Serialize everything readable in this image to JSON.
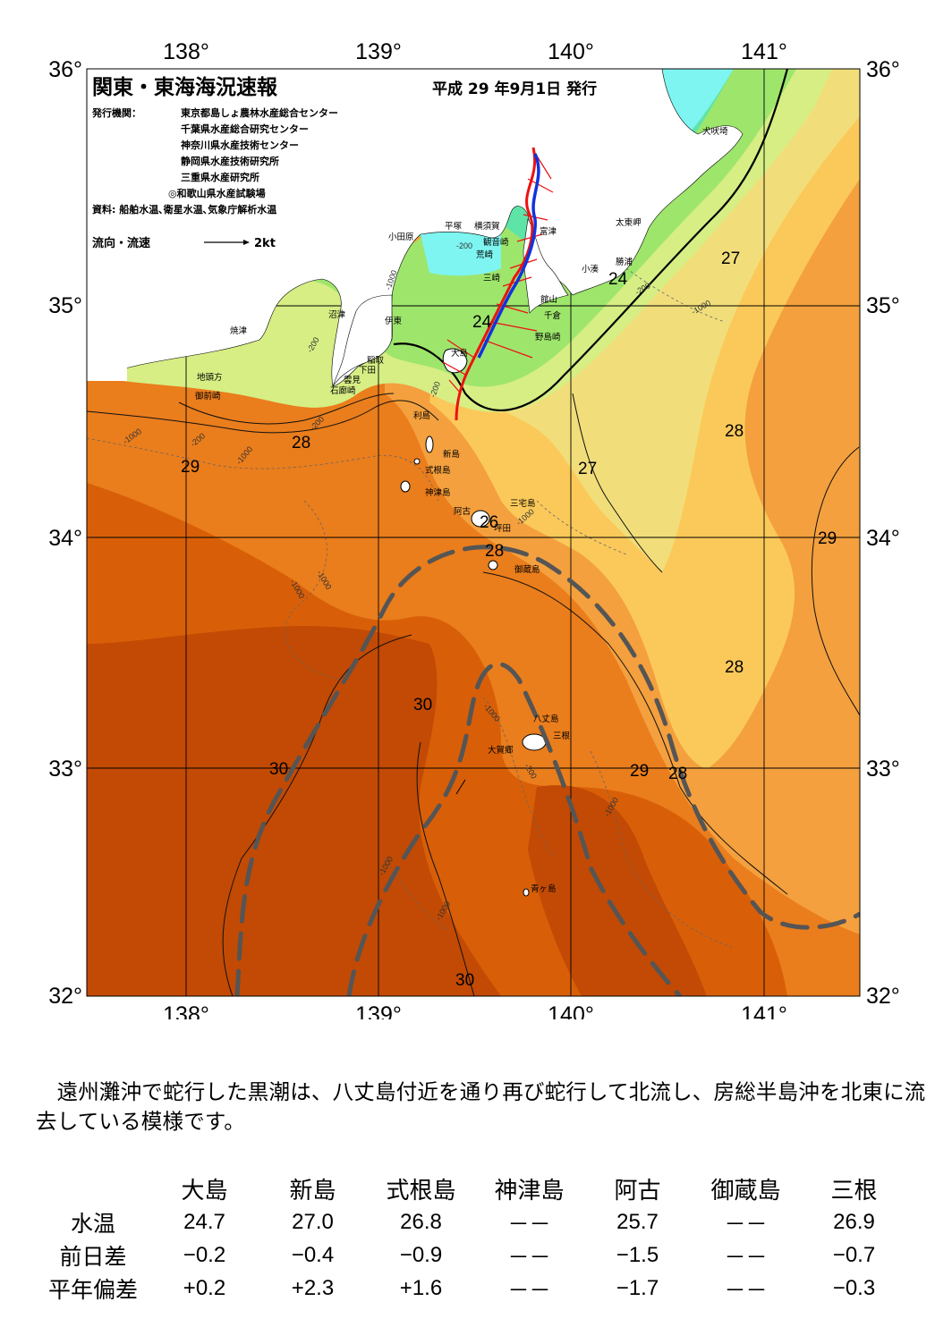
{
  "map": {
    "title": "関東・東海海況速報",
    "issue_date": "平成 29 年9月1日 発行",
    "issuer_label": "発行機関：",
    "issuers": [
      "東京都島しょ農林水産総合センター",
      "千葉県水産総合研究センター",
      "神奈川県水産技術センター",
      "静岡県水産技術研究所",
      "三重県水産研究所",
      "◎和歌山県水産試験場"
    ],
    "source": "資料: 船舶水温､衛星水温､気象庁解析水温",
    "legend_label": "流向・流速",
    "legend_speed": "2kt",
    "lon_labels": [
      "138°",
      "139°",
      "140°",
      "141°"
    ],
    "lat_labels": [
      "36°",
      "35°",
      "34°",
      "33°",
      "32°"
    ],
    "place_names": {
      "inubo": "犬吠埼",
      "taito": "太東岬",
      "katsuura": "勝浦",
      "kominato": "小湊",
      "futtsu": "富津",
      "yokosuka": "横須賀",
      "kannonzaki": "観音崎",
      "arasaki": "荒崎",
      "misaki": "三崎",
      "hiratsuka": "平塚",
      "odawara": "小田原",
      "tateyama": "館山",
      "chikura": "千倉",
      "nojimazaki": "野島崎",
      "ito": "伊東",
      "numazu": "沼津",
      "yaizu": "焼津",
      "inatori": "稲取",
      "shimoda": "下田",
      "kumomi": "雲見",
      "irozaki": "石廊崎",
      "jitokata": "地頭方",
      "omaezaki": "御前崎",
      "oshima": "大島",
      "toshima": "利島",
      "niijima": "新島",
      "shikinejima": "式根島",
      "kozushima": "神津島",
      "miyakejima": "三宅島",
      "ako": "阿古",
      "tsubota": "坪田",
      "mikurajima": "御蔵島",
      "hachijojima": "八丈島",
      "mitsune": "三根",
      "okago": "大賀郷",
      "aogashima": "青ヶ島"
    },
    "isotherm_labels": [
      "24",
      "24",
      "26",
      "27",
      "27",
      "28",
      "28",
      "28",
      "28",
      "28",
      "29",
      "29",
      "29",
      "30",
      "30",
      "30"
    ],
    "depth_labels": [
      "-1000",
      "-200",
      "-200",
      "-200",
      "-1000",
      "-1000",
      "-200",
      "-1000",
      "-200",
      "-1000",
      "-1000",
      "-1000",
      "-200",
      "-1000",
      "-200",
      "-1000",
      "-1000",
      "-1000"
    ],
    "colors": {
      "t_cyan": "#7ef5f0",
      "t_20": "#5fe4a8",
      "t_22": "#9ee56c",
      "t_24": "#d6ee84",
      "t_26": "#f1de7a",
      "t_27": "#fbc95a",
      "t_28": "#f4a03e",
      "t_29": "#ea7d1c",
      "t_30": "#d85f08",
      "t_31": "#c24a04",
      "land": "#ffffff",
      "kuroshio_axis": "#555555",
      "current_red": "#ee1111",
      "current_blue": "#1133dd"
    }
  },
  "description": "遠州灘沖で蛇行した黒潮は、八丈島付近を通り再び蛇行して北流し、房総半島沖を北東に流去している模様です。",
  "table": {
    "columns": [
      "大島",
      "新島",
      "式根島",
      "神津島",
      "阿古",
      "御蔵島",
      "三根"
    ],
    "rows": [
      {
        "label": "水温",
        "values": [
          "24.7",
          "27.0",
          "26.8",
          "－－",
          "25.7",
          "－－",
          "26.9"
        ]
      },
      {
        "label": "前日差",
        "values": [
          "−0.2",
          "−0.4",
          "−0.9",
          "－－",
          "−1.5",
          "－－",
          "−0.7"
        ]
      },
      {
        "label": "平年偏差",
        "values": [
          "+0.2",
          "+2.3",
          "+1.6",
          "－－",
          "−1.7",
          "－－",
          "−0.3"
        ]
      }
    ]
  }
}
